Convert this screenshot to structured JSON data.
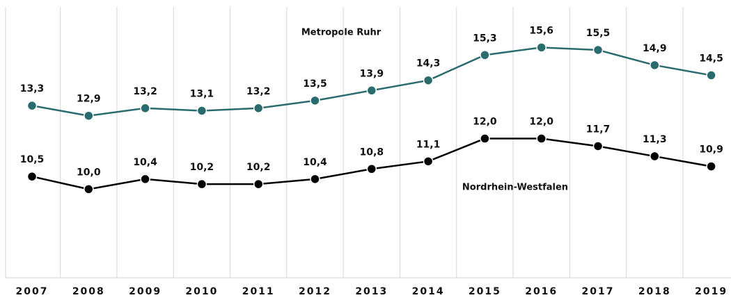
{
  "chart_data": {
    "type": "line",
    "categories": [
      "2007",
      "2008",
      "2009",
      "2010",
      "2011",
      "2012",
      "2013",
      "2014",
      "2015",
      "2016",
      "2017",
      "2018",
      "2019"
    ],
    "series": [
      {
        "name": "Metropole Ruhr",
        "color": "#2a6b6e",
        "values": [
          13.3,
          12.9,
          13.2,
          13.1,
          13.2,
          13.5,
          13.9,
          14.3,
          15.3,
          15.6,
          15.5,
          14.9,
          14.5
        ],
        "value_labels": [
          "13,3",
          "12,9",
          "13,2",
          "13,1",
          "13,2",
          "13,5",
          "13,9",
          "14,3",
          "15,3",
          "15,6",
          "15,5",
          "14,9",
          "14,5"
        ]
      },
      {
        "name": "Nordrhein-Westfalen",
        "color": "#000000",
        "values": [
          10.5,
          10.0,
          10.4,
          10.2,
          10.2,
          10.4,
          10.8,
          11.1,
          12.0,
          12.0,
          11.7,
          11.3,
          10.9
        ],
        "value_labels": [
          "10,5",
          "10,0",
          "10,4",
          "10,2",
          "10,2",
          "10,4",
          "10,8",
          "11,1",
          "12,0",
          "12,0",
          "11,7",
          "11,3",
          "10,9"
        ]
      }
    ],
    "ylim": [
      6.5,
      17.2
    ],
    "grid": true
  }
}
